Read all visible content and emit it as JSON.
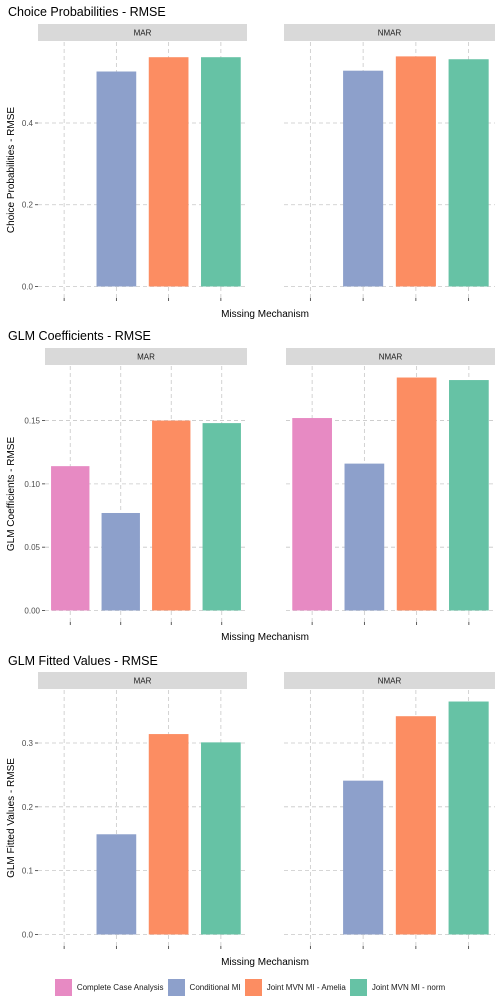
{
  "legend": {
    "items": [
      {
        "label": "Complete Case Analysis",
        "color": "#E78AC3"
      },
      {
        "label": "Conditional MI",
        "color": "#8DA0CB"
      },
      {
        "label": "Joint MVN MI - Amelia",
        "color": "#FC8D62"
      },
      {
        "label": "Joint MVN MI - norm",
        "color": "#66C2A5"
      }
    ]
  },
  "chart_data": [
    {
      "type": "bar",
      "title": "Choice Probabilities - RMSE",
      "xlabel": "Missing Mechanism",
      "ylabel": "Choice Probabilities - RMSE",
      "ylim": [
        0,
        0.57
      ],
      "yticks": [
        0.0,
        0.2,
        0.4
      ],
      "ytick_labels": [
        "0.0",
        "0.2",
        "0.4"
      ],
      "grid": true,
      "facets": [
        "MAR",
        "NMAR"
      ],
      "categories": [
        "Complete Case Analysis",
        "Conditional MI",
        "Joint MVN MI - Amelia",
        "Joint MVN MI - norm"
      ],
      "series": [
        {
          "facet": "MAR",
          "values": [
            null,
            0.526,
            0.561,
            0.561
          ]
        },
        {
          "facet": "NMAR",
          "values": [
            null,
            0.528,
            0.563,
            0.556
          ]
        }
      ]
    },
    {
      "type": "bar",
      "title": "GLM Coefficients - RMSE",
      "xlabel": "Missing Mechanism",
      "ylabel": "GLM Coefficients - RMSE",
      "ylim": [
        0,
        0.184
      ],
      "yticks": [
        0.0,
        0.05,
        0.1,
        0.15
      ],
      "ytick_labels": [
        "0.00",
        "0.05",
        "0.10",
        "0.15"
      ],
      "grid": true,
      "facets": [
        "MAR",
        "NMAR"
      ],
      "categories": [
        "Complete Case Analysis",
        "Conditional MI",
        "Joint MVN MI - Amelia",
        "Joint MVN MI - norm"
      ],
      "series": [
        {
          "facet": "MAR",
          "values": [
            0.114,
            0.077,
            0.15,
            0.148
          ]
        },
        {
          "facet": "NMAR",
          "values": [
            0.152,
            0.116,
            0.184,
            0.182
          ]
        }
      ]
    },
    {
      "type": "bar",
      "title": "GLM Fitted Values - RMSE",
      "xlabel": "Missing Mechanism",
      "ylabel": "GLM Fitted Values - RMSE",
      "ylim": [
        0,
        0.365
      ],
      "yticks": [
        0.0,
        0.1,
        0.2,
        0.3
      ],
      "ytick_labels": [
        "0.0",
        "0.1",
        "0.2",
        "0.3"
      ],
      "grid": true,
      "facets": [
        "MAR",
        "NMAR"
      ],
      "categories": [
        "Complete Case Analysis",
        "Conditional MI",
        "Joint MVN MI - Amelia",
        "Joint MVN MI - norm"
      ],
      "series": [
        {
          "facet": "MAR",
          "values": [
            null,
            0.157,
            0.314,
            0.301
          ]
        },
        {
          "facet": "NMAR",
          "values": [
            null,
            0.241,
            0.342,
            0.365
          ]
        }
      ]
    }
  ]
}
